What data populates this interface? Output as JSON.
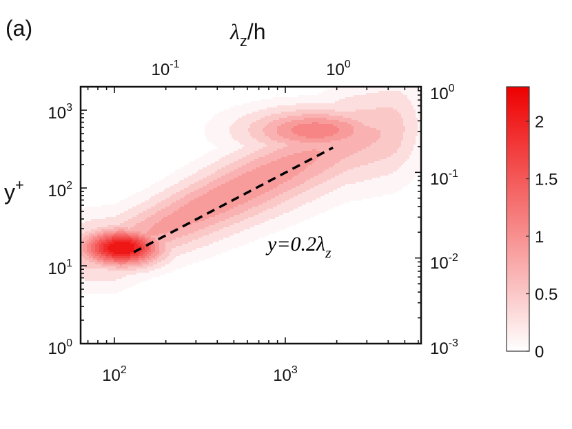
{
  "panel_label": "(a)",
  "chart_data": {
    "type": "contour",
    "title": "",
    "x_bottom": {
      "label": "",
      "scale": "log",
      "range": [
        63,
        6300
      ],
      "tick_base": "10",
      "tick_exponents": [
        "2",
        "3"
      ]
    },
    "x_top": {
      "label": "λz/h",
      "label_main": "λ",
      "label_sub": "z",
      "label_suffix": "/h",
      "scale": "log",
      "tick_base": "10",
      "tick_exponents": [
        "-1",
        "0"
      ]
    },
    "y_left": {
      "label": "y+",
      "label_main": "y",
      "label_sup": "+",
      "scale": "log",
      "range": [
        1,
        2000
      ],
      "tick_base": "10",
      "tick_exponents": [
        "0",
        "1",
        "2",
        "3"
      ]
    },
    "y_right": {
      "label": "",
      "scale": "log",
      "tick_base": "10",
      "tick_exponents": [
        "-3",
        "-2",
        "-1",
        "0"
      ]
    },
    "colorbar": {
      "range": [
        0,
        2.3
      ],
      "ticks": [
        "0",
        "0.5",
        "1",
        "1.5",
        "2"
      ],
      "color_low": "#ffffff",
      "color_high": "#ee0000"
    },
    "contour_levels": [
      0.2,
      0.4,
      0.6,
      0.8,
      1.0,
      1.2,
      1.4,
      1.6,
      1.8,
      2.0
    ],
    "peaks": [
      {
        "lambda_plus": 110,
        "y_plus": 17,
        "value": 2.3
      },
      {
        "lambda_plus": 1500,
        "y_plus": 550,
        "value": 1.15
      }
    ],
    "reference_line": {
      "label": "y=0.2λz",
      "text_main": "y=0.2λ",
      "text_sub": "z",
      "style": "dashed",
      "points": [
        {
          "x": 130,
          "y": 15
        },
        {
          "x": 1900,
          "y": 330
        }
      ]
    }
  }
}
